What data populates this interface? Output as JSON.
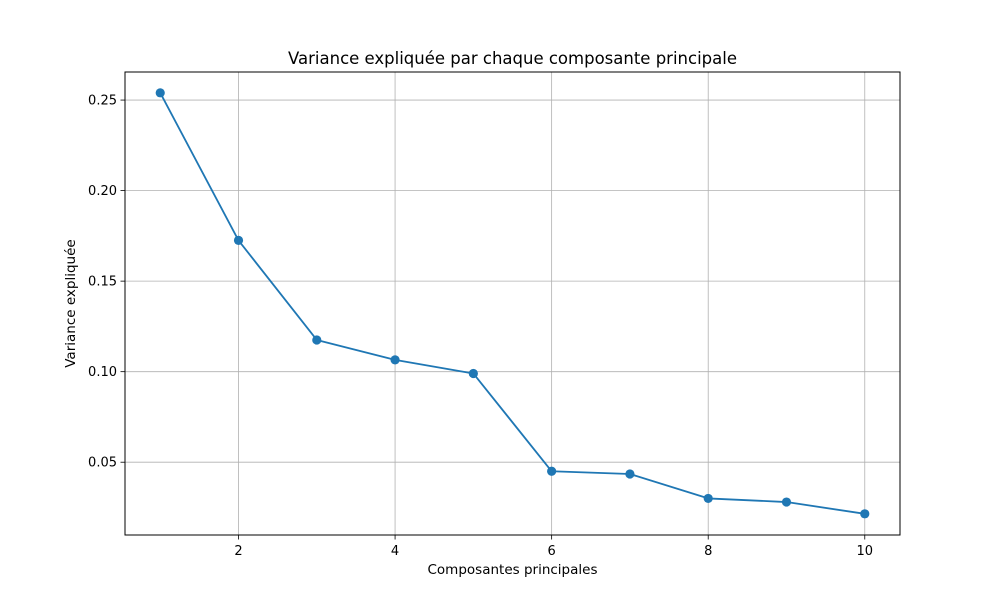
{
  "chart_data": {
    "type": "line",
    "title": "Variance expliquée par chaque composante principale",
    "xlabel": "Composantes principales",
    "ylabel": "Variance expliquée",
    "xlim": [
      0.55,
      10.45
    ],
    "ylim": [
      0.0098,
      0.2655
    ],
    "xticks": [
      2,
      4,
      6,
      8,
      10
    ],
    "xtick_labels": [
      "2",
      "4",
      "6",
      "8",
      "10"
    ],
    "yticks": [
      0.05,
      0.1,
      0.15,
      0.2,
      0.25
    ],
    "ytick_labels": [
      "0.05",
      "0.10",
      "0.15",
      "0.20",
      "0.25"
    ],
    "grid": true,
    "series": [
      {
        "color": "#1f77b4",
        "marker": "circle",
        "x": [
          1,
          2,
          3,
          4,
          5,
          6,
          7,
          8,
          9,
          10
        ],
        "y": [
          0.254,
          0.1725,
          0.1175,
          0.1065,
          0.099,
          0.045,
          0.0435,
          0.03,
          0.028,
          0.0215
        ]
      }
    ]
  },
  "colors": {
    "line": "#1f77b4",
    "grid": "#b0b0b0",
    "axes": "#000000"
  }
}
